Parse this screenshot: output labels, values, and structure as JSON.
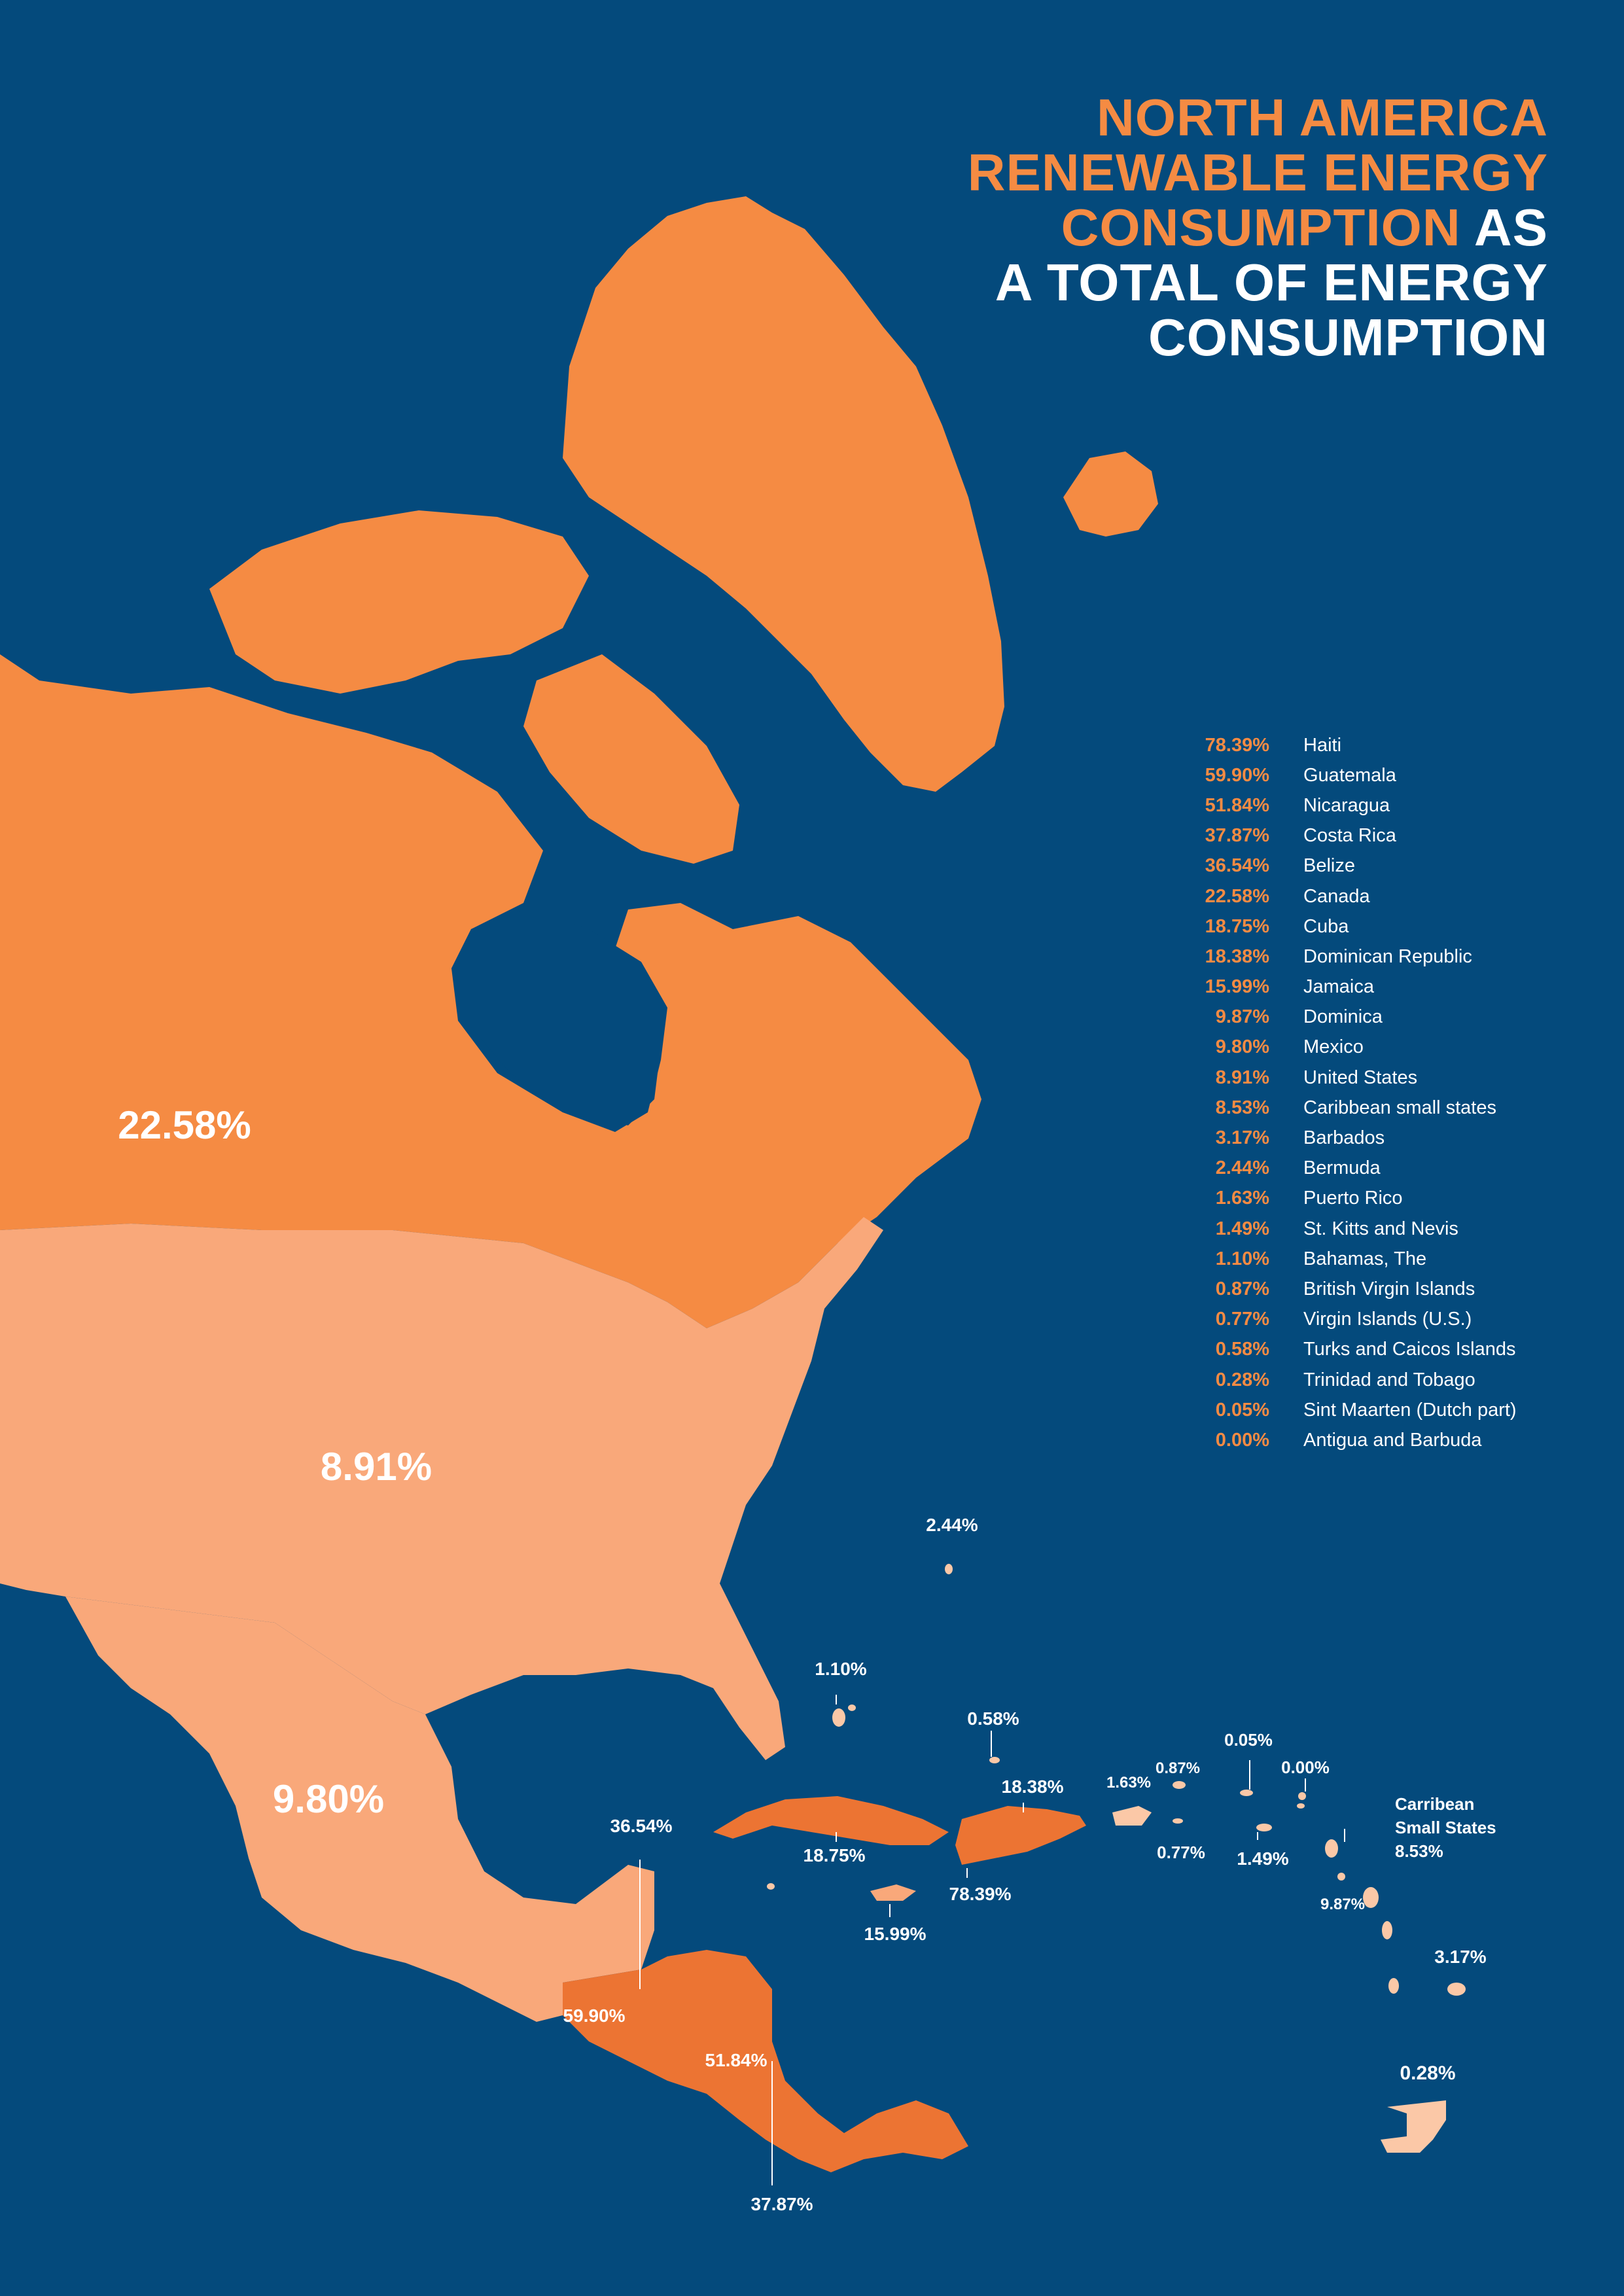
{
  "title": {
    "line1": "NORTH AMERICA",
    "line2": "RENEWABLE ENERGY",
    "line3a": "CONSUMPTION",
    "line3b": " AS",
    "line4": "A TOTAL OF ENERGY",
    "line5": "CONSUMPTION"
  },
  "colors": {
    "background": "#044a7c",
    "canada": "#f58b43",
    "usa_mexico": "#f9a87a",
    "central_america": "#ec7433",
    "islands_light": "#fbc8a7",
    "legend_value": "#f58b43",
    "text": "#ffffff"
  },
  "legend": [
    {
      "value": "78.39%",
      "country": "Haiti"
    },
    {
      "value": "59.90%",
      "country": "Guatemala"
    },
    {
      "value": "51.84%",
      "country": "Nicaragua"
    },
    {
      "value": "37.87%",
      "country": "Costa Rica"
    },
    {
      "value": "36.54%",
      "country": "Belize"
    },
    {
      "value": "22.58%",
      "country": "Canada"
    },
    {
      "value": "18.75%",
      "country": "Cuba"
    },
    {
      "value": "18.38%",
      "country": "Dominican Republic"
    },
    {
      "value": "15.99%",
      "country": "Jamaica"
    },
    {
      "value": "9.87%",
      "country": "Dominica"
    },
    {
      "value": "9.80%",
      "country": "Mexico"
    },
    {
      "value": "8.91%",
      "country": "United States"
    },
    {
      "value": "8.53%",
      "country": "Caribbean small states"
    },
    {
      "value": "3.17%",
      "country": "Barbados"
    },
    {
      "value": "2.44%",
      "country": "Bermuda"
    },
    {
      "value": "1.63%",
      "country": "Puerto Rico"
    },
    {
      "value": "1.49%",
      "country": "St. Kitts and Nevis"
    },
    {
      "value": "1.10%",
      "country": "Bahamas, The"
    },
    {
      "value": "0.87%",
      "country": "British Virgin Islands"
    },
    {
      "value": "0.77%",
      "country": "Virgin Islands (U.S.)"
    },
    {
      "value": "0.58%",
      "country": "Turks and Caicos Islands"
    },
    {
      "value": "0.28%",
      "country": "Trinidad and Tobago"
    },
    {
      "value": "0.05%",
      "country": "Sint Maarten (Dutch part)"
    },
    {
      "value": "0.00%",
      "country": "Antigua and Barbuda"
    }
  ],
  "map_labels": {
    "canada": "22.58%",
    "usa": "8.91%",
    "mexico": "9.80%",
    "bermuda": "2.44%",
    "bahamas": "1.10%",
    "turks_caicos": "0.58%",
    "dominican_republic": "18.38%",
    "puerto_rico": "1.63%",
    "british_virgin_islands": "0.87%",
    "sint_maarten": "0.05%",
    "antigua": "0.00%",
    "belize": "36.54%",
    "cuba": "18.75%",
    "haiti": "78.39%",
    "virgin_islands_us": "0.77%",
    "st_kitts": "1.49%",
    "caribbean_small_states_1": "Carribean",
    "caribbean_small_states_2": "Small States",
    "caribbean_small_states_value": "8.53%",
    "jamaica": "15.99%",
    "dominica": "9.87%",
    "barbados": "3.17%",
    "guatemala": "59.90%",
    "nicaragua": "51.84%",
    "trinidad": "0.28%",
    "costa_rica": "37.87%"
  }
}
